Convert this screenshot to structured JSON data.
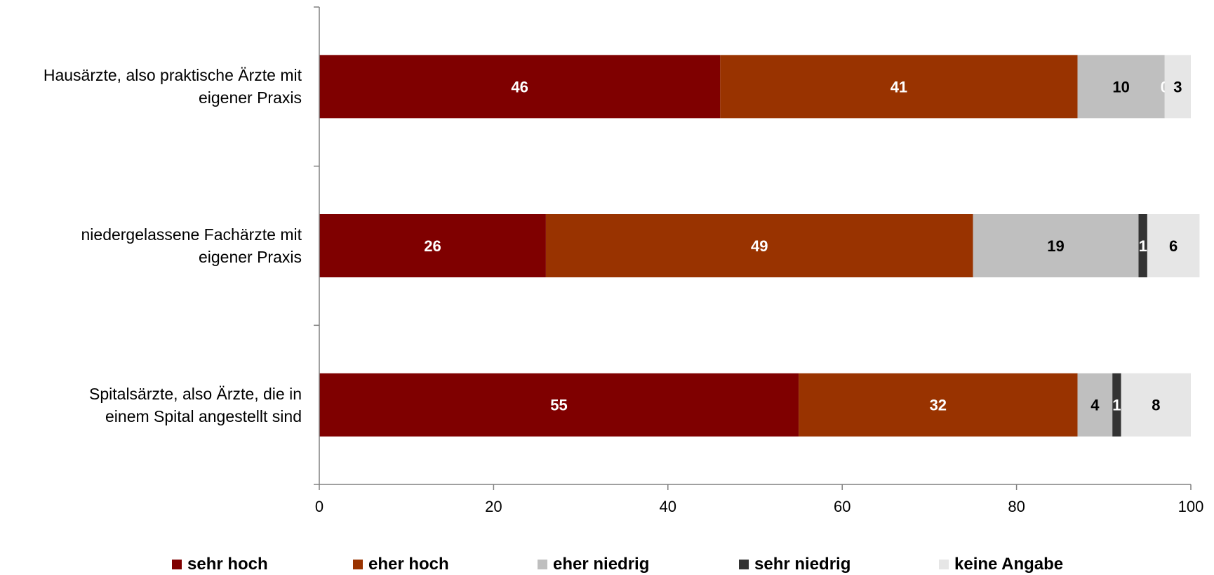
{
  "chart_data": {
    "type": "bar",
    "orientation": "horizontal",
    "stacked": true,
    "categories": [
      "Hausärzte, also praktische Ärzte mit\neigener Praxis",
      "niedergelassene Fachärzte mit\neigener Praxis",
      "Spitalsärzte, also Ärzte, die in\neinem Spital angestellt sind"
    ],
    "series": [
      {
        "name": "sehr hoch",
        "color": "#7f0000",
        "label_color": "#ffffff",
        "values": [
          46,
          26,
          55
        ]
      },
      {
        "name": "eher hoch",
        "color": "#993300",
        "label_color": "#ffffff",
        "values": [
          41,
          49,
          32
        ]
      },
      {
        "name": "eher niedrig",
        "color": "#bfbfbf",
        "label_color": "#000000",
        "values": [
          10,
          19,
          4
        ]
      },
      {
        "name": "sehr niedrig",
        "color": "#333333",
        "label_color": "#ffffff",
        "values": [
          0,
          1,
          1
        ]
      },
      {
        "name": "keine Angabe",
        "color": "#e6e6e6",
        "label_color": "#000000",
        "values": [
          3,
          6,
          8
        ]
      }
    ],
    "xlim": [
      0,
      100
    ],
    "x_ticks": [
      0,
      20,
      40,
      60,
      80,
      100
    ],
    "grid": false,
    "legend_position": "bottom"
  }
}
